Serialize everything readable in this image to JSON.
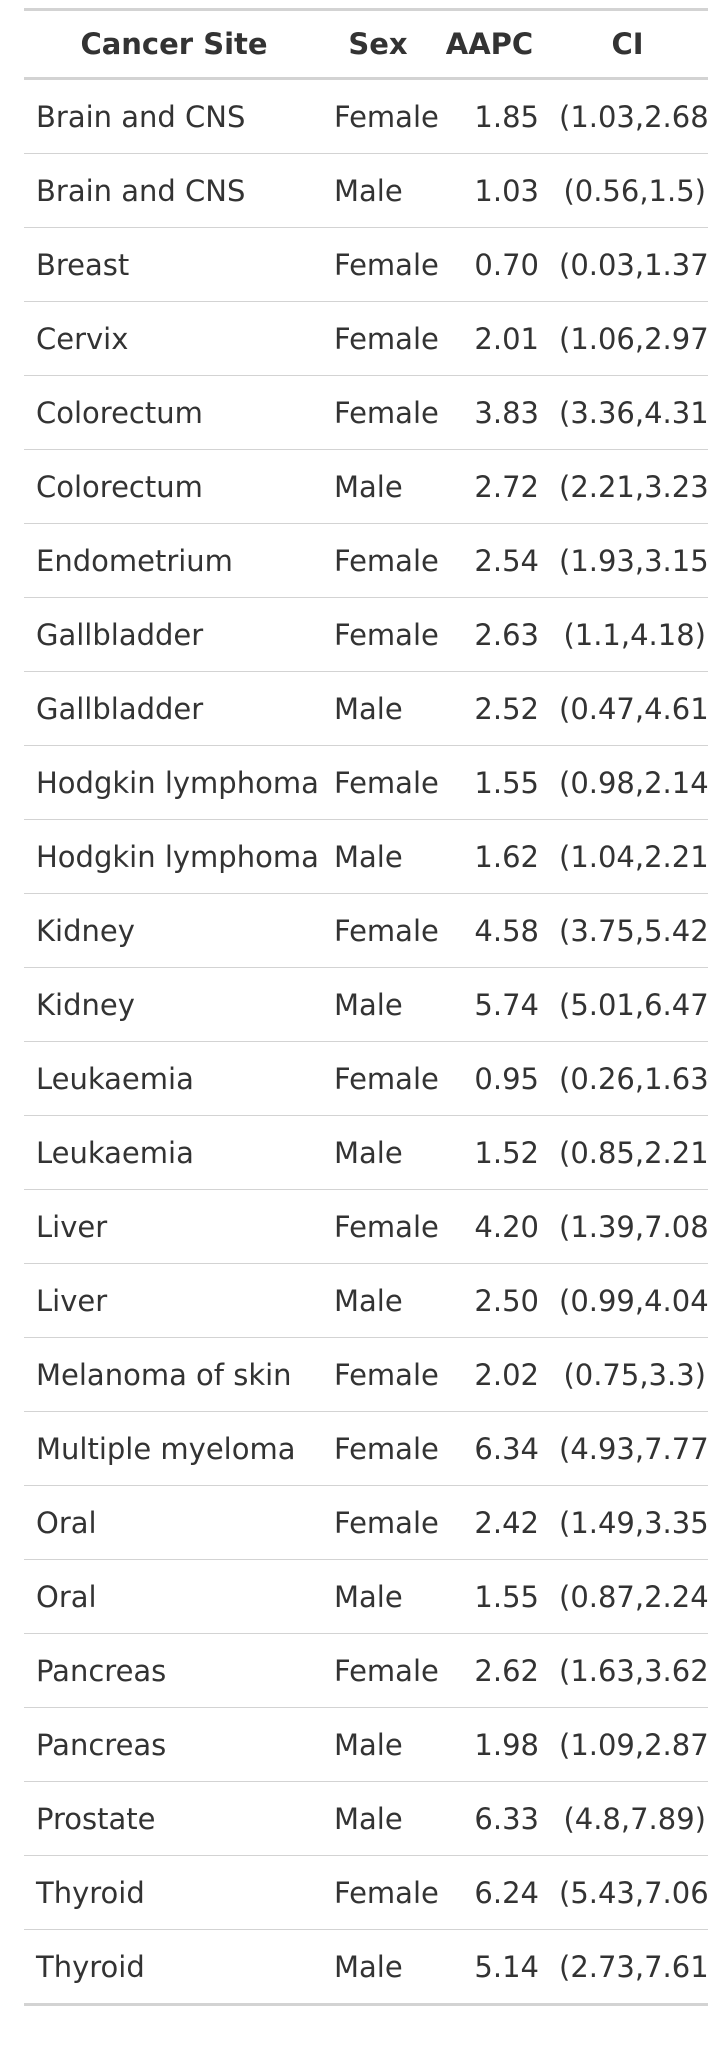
{
  "table": {
    "headers": {
      "site": "Cancer Site",
      "sex": "Sex",
      "aapc": "AAPC",
      "ci": "CI"
    },
    "rows": [
      {
        "site": "Brain and CNS",
        "sex": "Female",
        "aapc": "1.85",
        "ci": "(1.03,2.68)"
      },
      {
        "site": "Brain and CNS",
        "sex": "Male",
        "aapc": "1.03",
        "ci": "(0.56,1.5)"
      },
      {
        "site": "Breast",
        "sex": "Female",
        "aapc": "0.70",
        "ci": "(0.03,1.37)"
      },
      {
        "site": "Cervix",
        "sex": "Female",
        "aapc": "2.01",
        "ci": "(1.06,2.97)"
      },
      {
        "site": "Colorectum",
        "sex": "Female",
        "aapc": "3.83",
        "ci": "(3.36,4.31)"
      },
      {
        "site": "Colorectum",
        "sex": "Male",
        "aapc": "2.72",
        "ci": "(2.21,3.23)"
      },
      {
        "site": "Endometrium",
        "sex": "Female",
        "aapc": "2.54",
        "ci": "(1.93,3.15)"
      },
      {
        "site": "Gallbladder",
        "sex": "Female",
        "aapc": "2.63",
        "ci": "(1.1,4.18)"
      },
      {
        "site": "Gallbladder",
        "sex": "Male",
        "aapc": "2.52",
        "ci": "(0.47,4.61)"
      },
      {
        "site": "Hodgkin lymphoma",
        "sex": "Female",
        "aapc": "1.55",
        "ci": "(0.98,2.14)"
      },
      {
        "site": "Hodgkin lymphoma",
        "sex": "Male",
        "aapc": "1.62",
        "ci": "(1.04,2.21)"
      },
      {
        "site": "Kidney",
        "sex": "Female",
        "aapc": "4.58",
        "ci": "(3.75,5.42)"
      },
      {
        "site": "Kidney",
        "sex": "Male",
        "aapc": "5.74",
        "ci": "(5.01,6.47)"
      },
      {
        "site": "Leukaemia",
        "sex": "Female",
        "aapc": "0.95",
        "ci": "(0.26,1.63)"
      },
      {
        "site": "Leukaemia",
        "sex": "Male",
        "aapc": "1.52",
        "ci": "(0.85,2.21)"
      },
      {
        "site": "Liver",
        "sex": "Female",
        "aapc": "4.20",
        "ci": "(1.39,7.08)"
      },
      {
        "site": "Liver",
        "sex": "Male",
        "aapc": "2.50",
        "ci": "(0.99,4.04)"
      },
      {
        "site": "Melanoma of skin",
        "sex": "Female",
        "aapc": "2.02",
        "ci": "(0.75,3.3)"
      },
      {
        "site": "Multiple myeloma",
        "sex": "Female",
        "aapc": "6.34",
        "ci": "(4.93,7.77)"
      },
      {
        "site": "Oral",
        "sex": "Female",
        "aapc": "2.42",
        "ci": "(1.49,3.35)"
      },
      {
        "site": "Oral",
        "sex": "Male",
        "aapc": "1.55",
        "ci": "(0.87,2.24)"
      },
      {
        "site": "Pancreas",
        "sex": "Female",
        "aapc": "2.62",
        "ci": "(1.63,3.62)"
      },
      {
        "site": "Pancreas",
        "sex": "Male",
        "aapc": "1.98",
        "ci": "(1.09,2.87)"
      },
      {
        "site": "Prostate",
        "sex": "Male",
        "aapc": "6.33",
        "ci": "(4.8,7.89)"
      },
      {
        "site": "Thyroid",
        "sex": "Female",
        "aapc": "6.24",
        "ci": "(5.43,7.06)"
      },
      {
        "site": "Thyroid",
        "sex": "Male",
        "aapc": "5.14",
        "ci": "(2.73,7.61)"
      }
    ]
  }
}
